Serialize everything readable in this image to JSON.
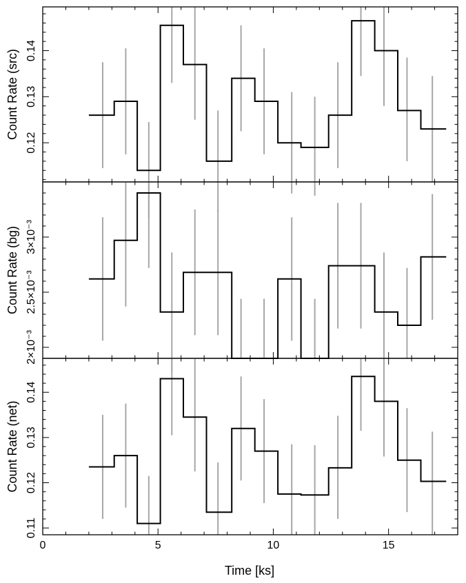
{
  "chart_data": [
    {
      "type": "line",
      "panel": "src",
      "ylabel": "Count Rate (src)",
      "ylim": [
        0.1115,
        0.1495
      ],
      "yticks": [
        0.12,
        0.13,
        0.14
      ],
      "ytick_labels": [
        "0.12",
        "0.13",
        "0.14"
      ],
      "x": [
        2.6,
        3.6,
        4.6,
        5.6,
        6.6,
        7.6,
        8.6,
        9.6,
        10.8,
        11.8,
        12.8,
        13.8,
        14.8,
        15.8,
        16.9
      ],
      "xedges": [
        2.0,
        3.1,
        4.1,
        5.1,
        6.1,
        7.1,
        8.2,
        9.2,
        10.2,
        11.2,
        12.4,
        13.4,
        14.4,
        15.4,
        16.4,
        17.5
      ],
      "values": [
        0.126,
        0.129,
        0.114,
        0.1455,
        0.137,
        0.116,
        0.134,
        0.129,
        0.12,
        0.119,
        0.126,
        0.1465,
        0.14,
        0.127,
        0.123
      ],
      "error_low": [
        0.1145,
        0.1175,
        0.1035,
        0.133,
        0.125,
        0.105,
        0.1225,
        0.1175,
        0.109,
        0.1085,
        0.1145,
        0.1345,
        0.128,
        0.116,
        0.1115
      ],
      "error_high": [
        0.1375,
        0.1405,
        0.1245,
        0.1495,
        0.1495,
        0.127,
        0.1455,
        0.1405,
        0.131,
        0.13,
        0.1375,
        0.1495,
        0.1495,
        0.1385,
        0.1345
      ]
    },
    {
      "type": "line",
      "panel": "bg",
      "ylabel": "Count Rate (bg)",
      "ylim": [
        0.0019,
        0.0035
      ],
      "yticks": [
        0.002,
        0.0025,
        0.003
      ],
      "ytick_labels": [
        "2×10⁻³",
        "2.5×10⁻³",
        "3×10⁻³"
      ],
      "x": [
        2.6,
        3.6,
        4.6,
        5.6,
        6.6,
        7.6,
        8.6,
        9.6,
        10.8,
        11.8,
        12.8,
        13.8,
        14.8,
        15.8,
        16.9
      ],
      "xedges": [
        2.0,
        3.1,
        4.1,
        5.1,
        6.1,
        7.1,
        8.2,
        9.2,
        10.2,
        11.2,
        12.4,
        13.4,
        14.4,
        15.4,
        16.4,
        17.5
      ],
      "values": [
        0.00262,
        0.00297,
        0.0034,
        0.00232,
        0.00268,
        0.00268,
        0.0019,
        0.0019,
        0.00262,
        0.0019,
        0.00274,
        0.00274,
        0.00232,
        0.0022,
        0.00282
      ],
      "error_low": [
        0.00206,
        0.00237,
        0.00272,
        0.00178,
        0.00211,
        0.00211,
        0.0019,
        0.0019,
        0.00206,
        0.0019,
        0.00217,
        0.00217,
        0.00178,
        0.0019,
        0.00225
      ],
      "error_high": [
        0.00318,
        0.0035,
        0.0035,
        0.00286,
        0.00325,
        0.00325,
        0.00244,
        0.00244,
        0.00318,
        0.00244,
        0.00331,
        0.00331,
        0.00286,
        0.00272,
        0.00339
      ]
    },
    {
      "type": "line",
      "panel": "net",
      "xlabel": "Time [ks]",
      "ylabel": "Count Rate (net)",
      "xlim": [
        0,
        18
      ],
      "xticks": [
        0,
        5,
        10,
        15
      ],
      "ylim": [
        0.1085,
        0.1475
      ],
      "yticks": [
        0.11,
        0.12,
        0.13,
        0.14
      ],
      "ytick_labels": [
        "0.11",
        "0.12",
        "0.13",
        "0.14"
      ],
      "x": [
        2.6,
        3.6,
        4.6,
        5.6,
        6.6,
        7.6,
        8.6,
        9.6,
        10.8,
        11.8,
        12.8,
        13.8,
        14.8,
        15.8,
        16.9
      ],
      "xedges": [
        2.0,
        3.1,
        4.1,
        5.1,
        6.1,
        7.1,
        8.2,
        9.2,
        10.2,
        11.2,
        12.4,
        13.4,
        14.4,
        15.4,
        16.4,
        17.5
      ],
      "values": [
        0.1235,
        0.126,
        0.111,
        0.143,
        0.1345,
        0.1135,
        0.132,
        0.127,
        0.1175,
        0.1173,
        0.1233,
        0.1435,
        0.138,
        0.125,
        0.1203
      ],
      "error_low": [
        0.112,
        0.1145,
        0.1085,
        0.1305,
        0.1225,
        0.1085,
        0.1205,
        0.1155,
        0.1085,
        0.1085,
        0.112,
        0.1315,
        0.1258,
        0.1135,
        0.1085
      ],
      "error_high": [
        0.135,
        0.1375,
        0.1215,
        0.1475,
        0.1475,
        0.1245,
        0.1435,
        0.1385,
        0.1285,
        0.1283,
        0.1348,
        0.1475,
        0.1475,
        0.1365,
        0.1313
      ]
    }
  ],
  "colors": {
    "step_line": "#000000",
    "error_bar": "#a6a6a6",
    "frame": "#000000"
  }
}
